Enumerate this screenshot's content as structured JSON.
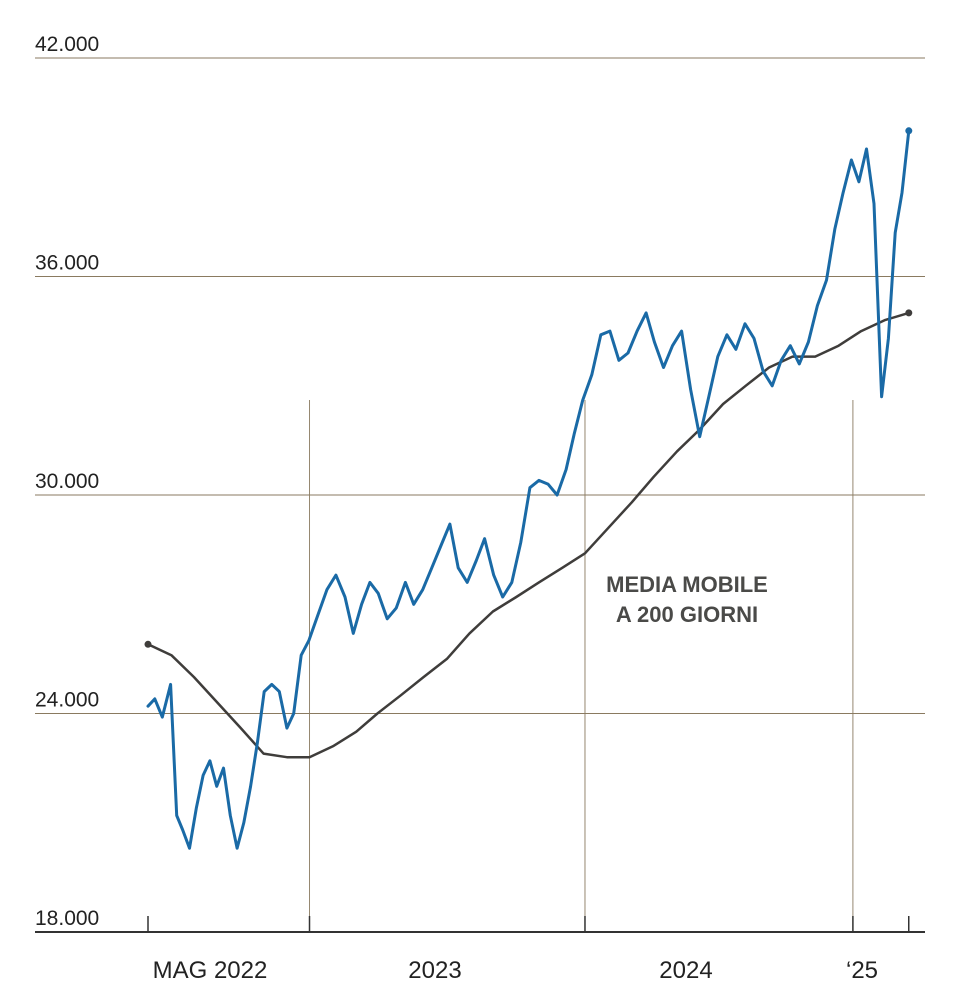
{
  "chart_data": {
    "type": "line",
    "title": "",
    "xlabel": "",
    "ylabel": "",
    "ylim": [
      18000,
      42000
    ],
    "xlim": [
      "2022-05",
      "2025-02"
    ],
    "grid": true,
    "y_ticks": [
      {
        "value": 18000,
        "label": "18.000"
      },
      {
        "value": 24000,
        "label": "24.000"
      },
      {
        "value": 30000,
        "label": "30.000"
      },
      {
        "value": 36000,
        "label": "36.000"
      },
      {
        "value": 42000,
        "label": "42.000"
      }
    ],
    "x_ticks": [
      {
        "value": "2022-05",
        "label": "MAG 2022"
      },
      {
        "value": "2023-01",
        "label": "2023"
      },
      {
        "value": "2024-01",
        "label": "2024"
      },
      {
        "value": "2025-01",
        "label": "‘25"
      }
    ],
    "x_separators": [
      "2022-12-01",
      "2023-12-01",
      "2024-11-20"
    ],
    "annotation": [
      "MEDIA MOBILE",
      "A 200 GIORNI"
    ],
    "colors": {
      "price": "#1a6aa6",
      "moving_average": "#3f3d3b",
      "grid": "#8a7a60",
      "axis": "#333333"
    },
    "series": [
      {
        "name": "",
        "role": "price",
        "points": [
          [
            "2022-05-01",
            24200
          ],
          [
            "2022-05-10",
            24400
          ],
          [
            "2022-05-20",
            23900
          ],
          [
            "2022-05-31",
            24800
          ],
          [
            "2022-06-08",
            21200
          ],
          [
            "2022-06-16",
            20800
          ],
          [
            "2022-06-25",
            20300
          ],
          [
            "2022-07-04",
            21400
          ],
          [
            "2022-07-13",
            22300
          ],
          [
            "2022-07-22",
            22700
          ],
          [
            "2022-07-31",
            22000
          ],
          [
            "2022-08-09",
            22500
          ],
          [
            "2022-08-18",
            21200
          ],
          [
            "2022-08-27",
            20300
          ],
          [
            "2022-09-05",
            21000
          ],
          [
            "2022-09-14",
            22000
          ],
          [
            "2022-09-23",
            23200
          ],
          [
            "2022-10-02",
            24600
          ],
          [
            "2022-10-12",
            24800
          ],
          [
            "2022-10-22",
            24600
          ],
          [
            "2022-11-01",
            23600
          ],
          [
            "2022-11-10",
            24000
          ],
          [
            "2022-11-20",
            25600
          ],
          [
            "2022-11-30",
            26000
          ],
          [
            "2022-12-12",
            26700
          ],
          [
            "2022-12-24",
            27400
          ],
          [
            "2023-01-05",
            27800
          ],
          [
            "2023-01-17",
            27200
          ],
          [
            "2023-01-28",
            26200
          ],
          [
            "2023-02-08",
            27000
          ],
          [
            "2023-02-19",
            27600
          ],
          [
            "2023-03-02",
            27300
          ],
          [
            "2023-03-14",
            26600
          ],
          [
            "2023-03-26",
            26900
          ],
          [
            "2023-04-07",
            27600
          ],
          [
            "2023-04-18",
            27000
          ],
          [
            "2023-04-30",
            27400
          ],
          [
            "2023-05-12",
            28000
          ],
          [
            "2023-05-24",
            28600
          ],
          [
            "2023-06-05",
            29200
          ],
          [
            "2023-06-16",
            28000
          ],
          [
            "2023-06-28",
            27600
          ],
          [
            "2023-07-10",
            28200
          ],
          [
            "2023-07-21",
            28800
          ],
          [
            "2023-08-02",
            27800
          ],
          [
            "2023-08-14",
            27200
          ],
          [
            "2023-08-26",
            27600
          ],
          [
            "2023-09-07",
            28700
          ],
          [
            "2023-09-19",
            30200
          ],
          [
            "2023-10-01",
            30400
          ],
          [
            "2023-10-13",
            30300
          ],
          [
            "2023-10-25",
            30000
          ],
          [
            "2023-11-06",
            30700
          ],
          [
            "2023-11-17",
            31700
          ],
          [
            "2023-11-28",
            32600
          ],
          [
            "2023-12-10",
            33300
          ],
          [
            "2023-12-22",
            34400
          ],
          [
            "2024-01-03",
            34500
          ],
          [
            "2024-01-15",
            33700
          ],
          [
            "2024-01-27",
            33900
          ],
          [
            "2024-02-08",
            34500
          ],
          [
            "2024-02-20",
            35000
          ],
          [
            "2024-03-02",
            34200
          ],
          [
            "2024-03-14",
            33500
          ],
          [
            "2024-03-26",
            34100
          ],
          [
            "2024-04-07",
            34500
          ],
          [
            "2024-04-19",
            32900
          ],
          [
            "2024-05-01",
            31600
          ],
          [
            "2024-05-13",
            32700
          ],
          [
            "2024-05-25",
            33800
          ],
          [
            "2024-06-06",
            34400
          ],
          [
            "2024-06-18",
            34000
          ],
          [
            "2024-06-30",
            34700
          ],
          [
            "2024-07-12",
            34300
          ],
          [
            "2024-07-24",
            33400
          ],
          [
            "2024-08-05",
            33000
          ],
          [
            "2024-08-17",
            33700
          ],
          [
            "2024-08-29",
            34100
          ],
          [
            "2024-09-10",
            33600
          ],
          [
            "2024-09-22",
            34200
          ],
          [
            "2024-10-04",
            35200
          ],
          [
            "2024-10-16",
            35900
          ],
          [
            "2024-10-27",
            37300
          ],
          [
            "2024-11-07",
            38300
          ],
          [
            "2024-11-18",
            39200
          ],
          [
            "2024-11-28",
            38600
          ],
          [
            "2024-12-08",
            39500
          ],
          [
            "2024-12-18",
            38000
          ],
          [
            "2024-12-28",
            32700
          ],
          [
            "2025-01-06",
            34300
          ],
          [
            "2025-01-15",
            37200
          ],
          [
            "2025-01-24",
            38300
          ],
          [
            "2025-02-02",
            40000
          ]
        ]
      },
      {
        "name": "MEDIA MOBILE A 200 GIORNI",
        "role": "moving_average",
        "points": [
          [
            "2022-05-01",
            25900
          ],
          [
            "2022-06-01",
            25600
          ],
          [
            "2022-07-01",
            25000
          ],
          [
            "2022-08-01",
            24300
          ],
          [
            "2022-09-01",
            23600
          ],
          [
            "2022-10-01",
            22900
          ],
          [
            "2022-11-01",
            22800
          ],
          [
            "2022-12-01",
            22800
          ],
          [
            "2023-01-01",
            23100
          ],
          [
            "2023-02-01",
            23500
          ],
          [
            "2023-03-01",
            24000
          ],
          [
            "2023-04-01",
            24500
          ],
          [
            "2023-05-01",
            25000
          ],
          [
            "2023-06-01",
            25500
          ],
          [
            "2023-07-01",
            26200
          ],
          [
            "2023-08-01",
            26800
          ],
          [
            "2023-09-01",
            27200
          ],
          [
            "2023-10-01",
            27600
          ],
          [
            "2023-11-01",
            28000
          ],
          [
            "2023-12-01",
            28400
          ],
          [
            "2024-01-01",
            29100
          ],
          [
            "2024-02-01",
            29800
          ],
          [
            "2024-03-01",
            30500
          ],
          [
            "2024-04-01",
            31200
          ],
          [
            "2024-05-01",
            31800
          ],
          [
            "2024-06-01",
            32500
          ],
          [
            "2024-07-01",
            33000
          ],
          [
            "2024-08-01",
            33500
          ],
          [
            "2024-09-01",
            33800
          ],
          [
            "2024-10-01",
            33800
          ],
          [
            "2024-11-01",
            34100
          ],
          [
            "2024-12-01",
            34500
          ],
          [
            "2025-01-01",
            34800
          ],
          [
            "2025-02-02",
            35000
          ]
        ]
      }
    ]
  }
}
